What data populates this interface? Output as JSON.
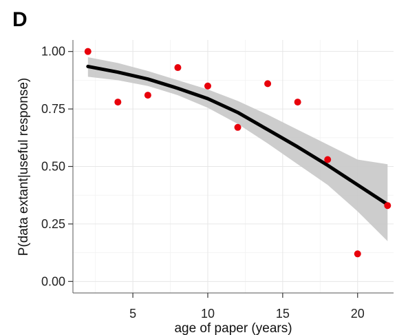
{
  "panel_label": "D",
  "chart_data": {
    "type": "scatter",
    "title": "",
    "xlabel": "age of paper (years)",
    "ylabel": "P(data extant|useful response)",
    "xlim": [
      1.0,
      22.4
    ],
    "ylim": [
      -0.05,
      1.05
    ],
    "x_ticks": [
      5,
      10,
      15,
      20
    ],
    "x_tick_labels": [
      "5",
      "10",
      "15",
      "20"
    ],
    "y_ticks": [
      0.0,
      0.25,
      0.5,
      0.75,
      1.0
    ],
    "y_tick_labels": [
      "0.00",
      "0.25",
      "0.50",
      "0.75",
      "1.00"
    ],
    "grid": true,
    "legend": "none",
    "points": {
      "color": "#e8000b",
      "x": [
        2,
        4,
        6,
        8,
        10,
        12,
        14,
        16,
        18,
        20,
        22
      ],
      "y": [
        1.0,
        0.78,
        0.81,
        0.93,
        0.85,
        0.67,
        0.86,
        0.78,
        0.53,
        0.12,
        0.33
      ]
    },
    "fit": {
      "color": "#000000",
      "band_color": "#c8c8c8",
      "x": [
        2,
        4,
        6,
        8,
        10,
        12,
        14,
        16,
        18,
        20,
        22
      ],
      "y": [
        0.935,
        0.91,
        0.88,
        0.84,
        0.795,
        0.735,
        0.66,
        0.585,
        0.505,
        0.42,
        0.335
      ],
      "lower": [
        0.89,
        0.875,
        0.85,
        0.81,
        0.755,
        0.685,
        0.6,
        0.51,
        0.42,
        0.305,
        0.175
      ],
      "upper": [
        0.975,
        0.95,
        0.915,
        0.875,
        0.835,
        0.785,
        0.725,
        0.66,
        0.595,
        0.53,
        0.51
      ]
    }
  }
}
